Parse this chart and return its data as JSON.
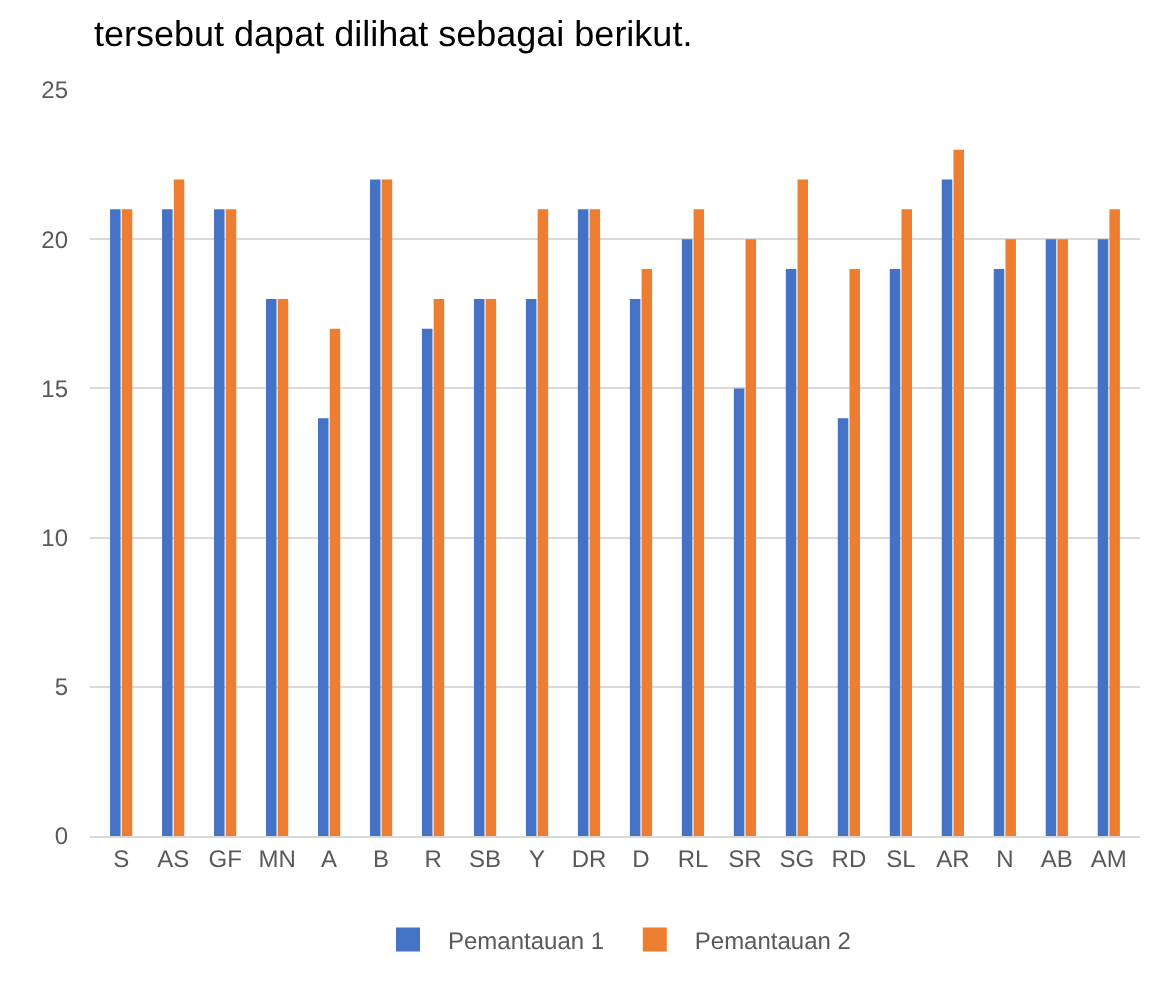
{
  "chart_data": {
    "type": "bar",
    "annotations": [
      "tersebut dapat dilihat sebagai berikut."
    ],
    "categories": [
      "S",
      "AS",
      "GF",
      "MN",
      "A",
      "B",
      "R",
      "SB",
      "Y",
      "DR",
      "D",
      "RL",
      "SR",
      "SG",
      "RD",
      "SL",
      "AR",
      "N",
      "AB",
      "AM"
    ],
    "series": [
      {
        "name": "Pemantauan 1",
        "color": "#4472c4",
        "values": [
          21,
          21,
          21,
          18,
          14,
          22,
          17,
          18,
          18,
          21,
          18,
          20,
          15,
          19,
          14,
          19,
          22,
          19,
          20,
          20
        ]
      },
      {
        "name": "Pemantauan 2",
        "color": "#ed7d31",
        "values": [
          21,
          22,
          21,
          18,
          17,
          22,
          18,
          18,
          21,
          21,
          19,
          21,
          20,
          22,
          19,
          21,
          23,
          20,
          20,
          21
        ]
      }
    ],
    "ylim": [
      0,
      25
    ],
    "yticks": [
      0,
      5,
      10,
      15,
      20,
      25
    ],
    "grid": "y",
    "legend": "bottom"
  }
}
